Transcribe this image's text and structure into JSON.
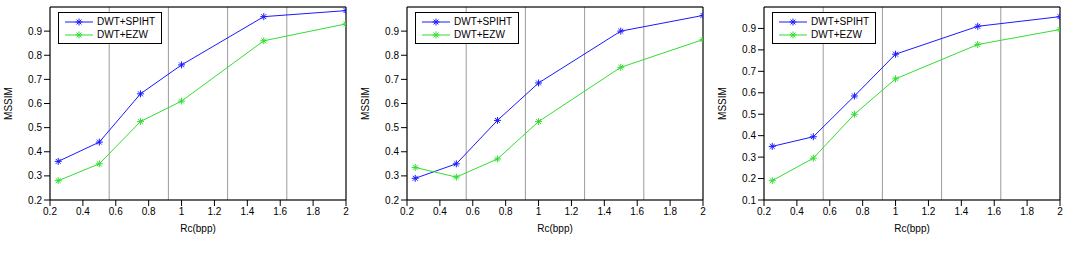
{
  "chart_data": [
    {
      "type": "line",
      "xlabel": "Rc(bpp)",
      "ylabel": "MSSIM",
      "x": [
        0.25,
        0.5,
        0.75,
        1,
        1.5,
        2
      ],
      "series": [
        {
          "name": "DWT+SPIHT",
          "color": "#1a1aff",
          "marker": "star",
          "values": [
            0.36,
            0.44,
            0.64,
            0.76,
            0.96,
            0.985
          ]
        },
        {
          "name": "DWT+EZW",
          "color": "#33dd33",
          "marker": "star",
          "values": [
            0.28,
            0.35,
            0.525,
            0.61,
            0.86,
            0.93
          ]
        }
      ],
      "xlim": [
        0.2,
        2
      ],
      "xticks": [
        0.2,
        0.4,
        0.6,
        0.8,
        1,
        1.2,
        1.4,
        1.6,
        1.8,
        2
      ],
      "ylim": [
        0.2,
        1
      ],
      "yticks": [
        0.2,
        0.3,
        0.4,
        0.5,
        0.6,
        0.7,
        0.8,
        0.9
      ],
      "grid": true,
      "legend": "upper left"
    },
    {
      "type": "line",
      "xlabel": "Rc(bpp)",
      "ylabel": "MSSIM",
      "x": [
        0.25,
        0.5,
        0.75,
        1,
        1.5,
        2
      ],
      "series": [
        {
          "name": "DWT+SPIHT",
          "color": "#1a1aff",
          "marker": "star",
          "values": [
            0.29,
            0.35,
            0.53,
            0.685,
            0.9,
            0.965
          ]
        },
        {
          "name": "DWT+EZW",
          "color": "#33dd33",
          "marker": "star",
          "values": [
            0.335,
            0.295,
            0.37,
            0.525,
            0.75,
            0.865
          ]
        }
      ],
      "xlim": [
        0.2,
        2
      ],
      "xticks": [
        0.2,
        0.4,
        0.6,
        0.8,
        1,
        1.2,
        1.4,
        1.6,
        1.8,
        2
      ],
      "ylim": [
        0.2,
        1
      ],
      "yticks": [
        0.2,
        0.3,
        0.4,
        0.5,
        0.6,
        0.7,
        0.8,
        0.9
      ],
      "grid": true,
      "legend": "upper left"
    },
    {
      "type": "line",
      "xlabel": "Rc(bpp)",
      "ylabel": "MSSIM",
      "x": [
        0.25,
        0.5,
        0.75,
        1,
        1.5,
        2
      ],
      "series": [
        {
          "name": "DWT+SPIHT",
          "color": "#1a1aff",
          "marker": "star",
          "values": [
            0.35,
            0.395,
            0.585,
            0.78,
            0.91,
            0.955
          ]
        },
        {
          "name": "DWT+EZW",
          "color": "#33dd33",
          "marker": "star",
          "values": [
            0.19,
            0.295,
            0.5,
            0.665,
            0.825,
            0.895
          ]
        }
      ],
      "xlim": [
        0.2,
        2
      ],
      "xticks": [
        0.2,
        0.4,
        0.6,
        0.8,
        1,
        1.2,
        1.4,
        1.6,
        1.8,
        2
      ],
      "ylim": [
        0.1,
        1
      ],
      "yticks": [
        0.1,
        0.2,
        0.3,
        0.4,
        0.5,
        0.6,
        0.7,
        0.8,
        0.9
      ],
      "grid": true,
      "legend": "upper left"
    }
  ]
}
